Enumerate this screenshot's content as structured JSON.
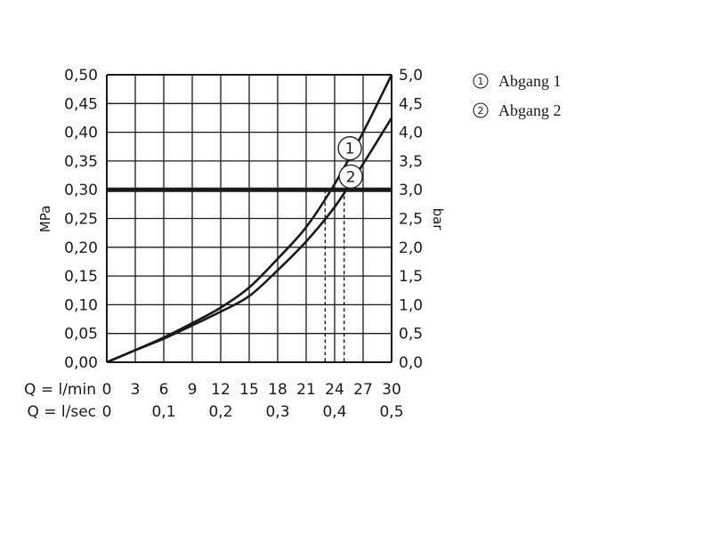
{
  "chart_data": {
    "type": "line",
    "x_label_lpm": "Q = l/min",
    "x_label_lps": "Q = l/sec",
    "x_ticks_lpm": [
      "0",
      "3",
      "6",
      "9",
      "12",
      "15",
      "18",
      "21",
      "24",
      "27",
      "30"
    ],
    "x_ticks_lps": [
      "0",
      "0,1",
      "0,2",
      "0,3",
      "0,4",
      "0,5"
    ],
    "y_left_label": "MPa",
    "y_right_label": "bar",
    "y_left_ticks": [
      "0,00",
      "0,05",
      "0,10",
      "0,15",
      "0,20",
      "0,25",
      "0,30",
      "0,35",
      "0,40",
      "0,45",
      "0,50"
    ],
    "y_right_ticks": [
      "0,0",
      "0,5",
      "1,0",
      "1,5",
      "2,0",
      "2,5",
      "3,0",
      "3,5",
      "4,0",
      "4,5",
      "5,0"
    ],
    "xlim": [
      0,
      30
    ],
    "ylim": [
      0,
      0.5
    ],
    "grid": true,
    "reference_line": {
      "y": 0.3,
      "label": ""
    },
    "dashed_drops": [
      {
        "series": "1",
        "x": 23
      },
      {
        "series": "2",
        "x": 25
      }
    ],
    "series": [
      {
        "name": "Abgang 1",
        "marker": "1",
        "marker_at": {
          "x": 25.6,
          "y": 0.372
        },
        "x": [
          0,
          3,
          6,
          9,
          12,
          15,
          18,
          21,
          24,
          27,
          30
        ],
        "y": [
          0,
          0.021,
          0.043,
          0.068,
          0.095,
          0.13,
          0.18,
          0.235,
          0.31,
          0.4,
          0.5
        ]
      },
      {
        "name": "Abgang 2",
        "marker": "2",
        "marker_at": {
          "x": 25.7,
          "y": 0.323
        },
        "x": [
          0,
          3,
          6,
          9,
          12,
          15,
          18,
          21,
          24,
          27,
          30
        ],
        "y": [
          0,
          0.021,
          0.041,
          0.064,
          0.088,
          0.115,
          0.16,
          0.21,
          0.27,
          0.345,
          0.425
        ]
      }
    ],
    "legend": [
      {
        "num": "1",
        "label": "Abgang 1"
      },
      {
        "num": "2",
        "label": "Abgang 2"
      }
    ],
    "legend_position": "top-right"
  }
}
